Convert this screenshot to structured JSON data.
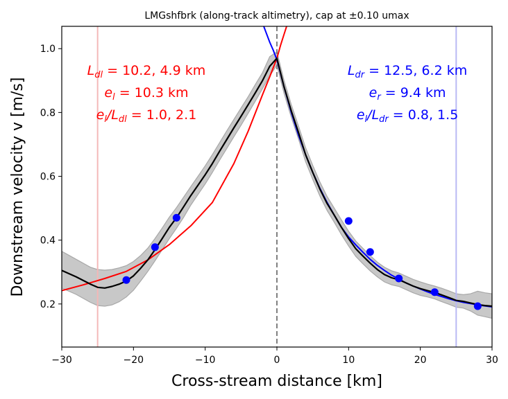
{
  "chart_data": {
    "type": "line",
    "title": "LMGshfbrk (along-track altimetry), cap at ±0.10 umax",
    "xlabel": "Cross-stream distance [km]",
    "ylabel": "Downstream velocity v [m/s]",
    "xlim": [
      -30,
      30
    ],
    "ylim": [
      0.065,
      1.07
    ],
    "xticks": [
      -30,
      -20,
      -10,
      0,
      10,
      20,
      30
    ],
    "yticks": [
      0.2,
      0.4,
      0.6,
      0.8,
      1.0
    ],
    "xtick_labels": [
      "−30",
      "−20",
      "−10",
      "0",
      "10",
      "20",
      "30"
    ],
    "ytick_labels": [
      "0.2",
      "0.4",
      "0.6",
      "0.8",
      "1.0"
    ],
    "grid": false,
    "colors": {
      "mean": "#000000",
      "band": "#c8c8c8",
      "left_fit": "#ff0000",
      "right_fit": "#0000ff",
      "points": "#0000ff",
      "center_line": "#808080"
    },
    "series": [
      {
        "role": "mean",
        "style": "line",
        "x": [
          -30,
          -28,
          -26,
          -25,
          -24,
          -23,
          -22,
          -21,
          -20,
          -19,
          -18,
          -17,
          -16,
          -15,
          -14,
          -13,
          -12,
          -11,
          -10,
          -9,
          -8,
          -7,
          -6,
          -5,
          -4,
          -3,
          -2,
          -1,
          0,
          1,
          2,
          3,
          4,
          5,
          6,
          7,
          8,
          9,
          10,
          11,
          12,
          13,
          14,
          15,
          16,
          17,
          18,
          19,
          20,
          21,
          22,
          23,
          24,
          25,
          26,
          27,
          28,
          29,
          30
        ],
        "y": [
          0.305,
          0.285,
          0.262,
          0.252,
          0.25,
          0.255,
          0.262,
          0.272,
          0.288,
          0.312,
          0.338,
          0.37,
          0.405,
          0.44,
          0.47,
          0.505,
          0.54,
          0.572,
          0.605,
          0.64,
          0.678,
          0.715,
          0.752,
          0.788,
          0.825,
          0.862,
          0.9,
          0.945,
          0.97,
          0.88,
          0.805,
          0.738,
          0.668,
          0.612,
          0.56,
          0.515,
          0.478,
          0.44,
          0.405,
          0.373,
          0.35,
          0.328,
          0.308,
          0.292,
          0.282,
          0.276,
          0.266,
          0.256,
          0.248,
          0.242,
          0.236,
          0.228,
          0.22,
          0.211,
          0.208,
          0.203,
          0.198,
          0.195,
          0.193
        ]
      },
      {
        "role": "band_upper",
        "style": "band",
        "x": [
          -30,
          -28,
          -26,
          -25,
          -24,
          -23,
          -22,
          -21,
          -20,
          -19,
          -18,
          -17,
          -16,
          -15,
          -14,
          -13,
          -12,
          -11,
          -10,
          -9,
          -8,
          -7,
          -6,
          -5,
          -4,
          -3,
          -2,
          -1,
          0,
          1,
          2,
          3,
          4,
          5,
          6,
          7,
          8,
          9,
          10,
          11,
          12,
          13,
          14,
          15,
          16,
          17,
          18,
          19,
          20,
          21,
          22,
          23,
          24,
          25,
          26,
          27,
          28,
          29,
          30
        ],
        "y": [
          0.365,
          0.34,
          0.315,
          0.308,
          0.306,
          0.308,
          0.313,
          0.32,
          0.333,
          0.352,
          0.375,
          0.405,
          0.438,
          0.472,
          0.502,
          0.535,
          0.568,
          0.6,
          0.633,
          0.668,
          0.705,
          0.742,
          0.778,
          0.814,
          0.85,
          0.888,
          0.925,
          0.975,
          0.99,
          0.9,
          0.825,
          0.758,
          0.69,
          0.634,
          0.582,
          0.537,
          0.5,
          0.463,
          0.428,
          0.397,
          0.374,
          0.352,
          0.331,
          0.315,
          0.304,
          0.297,
          0.287,
          0.277,
          0.269,
          0.262,
          0.256,
          0.249,
          0.241,
          0.232,
          0.229,
          0.232,
          0.24,
          0.235,
          0.232
        ]
      },
      {
        "role": "band_lower",
        "style": "band",
        "x": [
          -30,
          -28,
          -26,
          -25,
          -24,
          -23,
          -22,
          -21,
          -20,
          -19,
          -18,
          -17,
          -16,
          -15,
          -14,
          -13,
          -12,
          -11,
          -10,
          -9,
          -8,
          -7,
          -6,
          -5,
          -4,
          -3,
          -2,
          -1,
          0,
          1,
          2,
          3,
          4,
          5,
          6,
          7,
          8,
          9,
          10,
          11,
          12,
          13,
          14,
          15,
          16,
          17,
          18,
          19,
          20,
          21,
          22,
          23,
          24,
          25,
          26,
          27,
          28,
          29,
          30
        ],
        "y": [
          0.25,
          0.23,
          0.205,
          0.195,
          0.193,
          0.197,
          0.207,
          0.222,
          0.243,
          0.272,
          0.302,
          0.335,
          0.37,
          0.405,
          0.437,
          0.472,
          0.51,
          0.543,
          0.576,
          0.612,
          0.65,
          0.687,
          0.724,
          0.76,
          0.798,
          0.836,
          0.875,
          0.915,
          0.948,
          0.86,
          0.785,
          0.718,
          0.646,
          0.59,
          0.538,
          0.493,
          0.456,
          0.417,
          0.382,
          0.349,
          0.326,
          0.304,
          0.285,
          0.269,
          0.26,
          0.255,
          0.245,
          0.235,
          0.227,
          0.222,
          0.216,
          0.207,
          0.199,
          0.19,
          0.187,
          0.178,
          0.165,
          0.16,
          0.155
        ]
      },
      {
        "role": "left_fit",
        "style": "line",
        "x": [
          -30,
          -27,
          -24,
          -21,
          -18,
          -15,
          -12,
          -9,
          -6,
          -4,
          -2,
          -1,
          0,
          0.5,
          1.0,
          1.5
        ],
        "y": [
          0.242,
          0.26,
          0.28,
          0.302,
          0.338,
          0.386,
          0.445,
          0.518,
          0.64,
          0.742,
          0.856,
          0.912,
          0.97,
          1.01,
          1.045,
          1.08
        ]
      },
      {
        "role": "right_fit",
        "style": "line",
        "x": [
          -2.0,
          -1.5,
          -1.0,
          -0.5,
          0,
          1,
          2,
          3,
          4,
          5,
          6,
          7,
          8,
          9,
          10,
          11,
          12,
          13,
          14,
          15,
          16,
          17,
          18,
          19,
          20,
          21,
          22,
          23,
          24,
          25,
          26,
          27,
          28,
          29,
          30
        ],
        "y": [
          1.08,
          1.05,
          1.02,
          0.995,
          0.965,
          0.88,
          0.8,
          0.73,
          0.668,
          0.612,
          0.562,
          0.518,
          0.478,
          0.44,
          0.41,
          0.385,
          0.362,
          0.34,
          0.321,
          0.305,
          0.29,
          0.278,
          0.266,
          0.256,
          0.247,
          0.238,
          0.23,
          0.223,
          0.216,
          0.21,
          0.205,
          0.201,
          0.197,
          0.194,
          0.191
        ]
      },
      {
        "role": "points",
        "style": "scatter",
        "x": [
          -21,
          -17,
          -14,
          10,
          13,
          17,
          22,
          28
        ],
        "y": [
          0.275,
          0.378,
          0.47,
          0.46,
          0.363,
          0.28,
          0.237,
          0.193
        ]
      }
    ],
    "vlines": [
      {
        "x": -25,
        "color": "#f4b8b8"
      },
      {
        "x": 25,
        "color": "#b8b8f4"
      },
      {
        "x": 0,
        "color": "#808080",
        "dashed": true
      }
    ],
    "annotations_left": [
      {
        "base": "L",
        "sub": "dl",
        "rest": " = 10.2, 4.9 km"
      },
      {
        "base": "e",
        "sub": "l",
        "rest": " = 10.3 km"
      },
      {
        "base": "e",
        "sub": "l",
        "mid": "/",
        "base2": "L",
        "sub2": "dl",
        "rest": " = 1.0, 2.1"
      }
    ],
    "annotations_right": [
      {
        "base": "L",
        "sub": "dr",
        "rest": " = 12.5, 6.2 km"
      },
      {
        "base": "e",
        "sub": "r",
        "rest": " = 9.4 km"
      },
      {
        "base": "e",
        "sub": "l",
        "mid": "/",
        "base2": "L",
        "sub2": "dr",
        "rest": " = 0.8, 1.5"
      }
    ]
  }
}
